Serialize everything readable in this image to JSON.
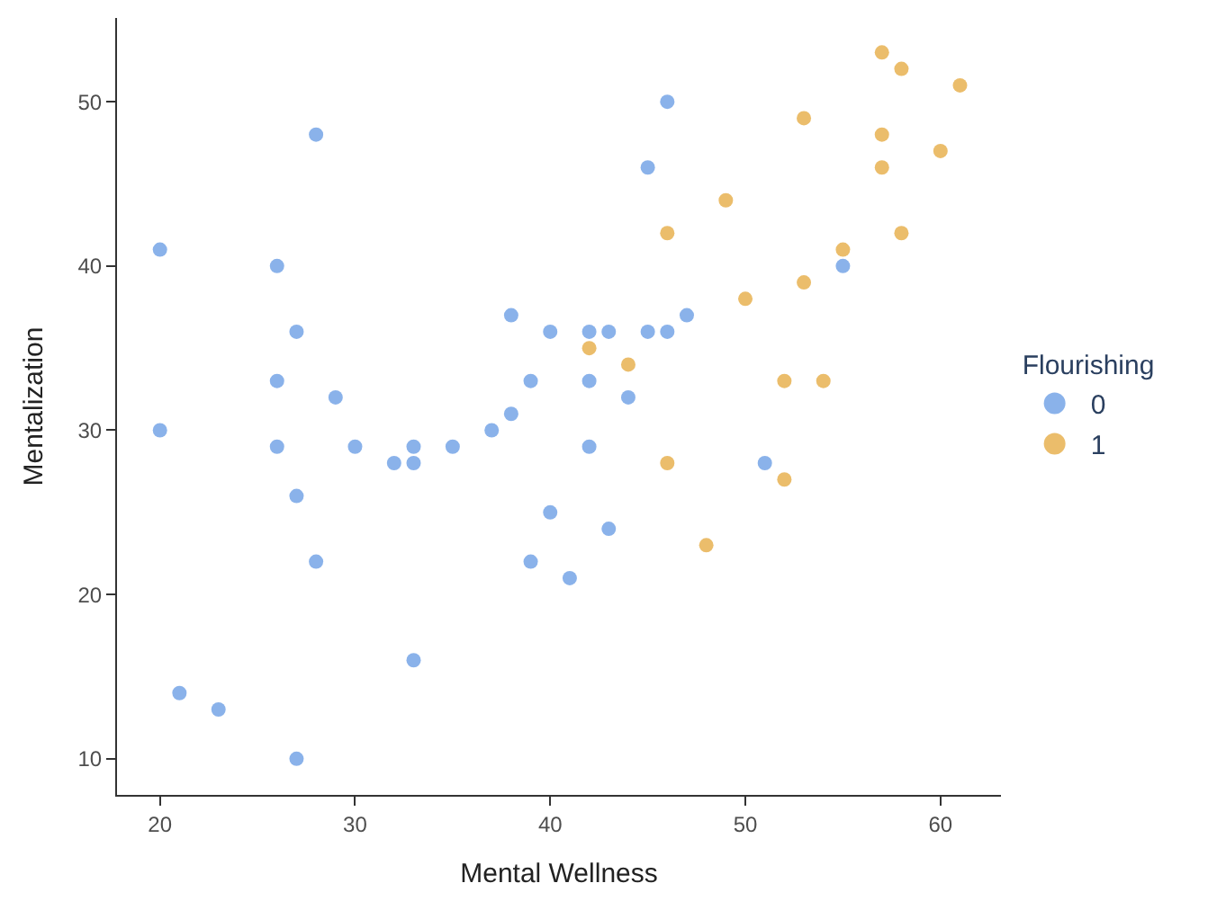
{
  "chart_data": {
    "type": "scatter",
    "xlabel": "Mental Wellness",
    "ylabel": "Mentalization",
    "legend_title": "Flourishing",
    "legend": "right",
    "marker": "circle",
    "xlim": [
      17.8,
      63.1
    ],
    "xticks": [
      20,
      30,
      40,
      50,
      60
    ],
    "ylim": [
      7.8,
      55.1
    ],
    "yticks": [
      10,
      20,
      30,
      40,
      50
    ],
    "series": [
      {
        "name": "0",
        "color": "#8ab2ea",
        "x": [
          20,
          20,
          21,
          23,
          26,
          26,
          26,
          27,
          27,
          27,
          28,
          28,
          29,
          30,
          32,
          33,
          33,
          33,
          35,
          37,
          38,
          38,
          39,
          39,
          40,
          40,
          41,
          42,
          42,
          42,
          43,
          43,
          44,
          45,
          45,
          46,
          46,
          47,
          51,
          55
        ],
        "values": [
          41,
          30,
          14,
          13,
          40,
          33,
          29,
          36,
          26,
          10,
          48,
          22,
          32,
          29,
          28,
          29,
          28,
          16,
          29,
          30,
          37,
          31,
          33,
          22,
          36,
          25,
          21,
          36,
          33,
          29,
          36,
          24,
          32,
          46,
          36,
          50,
          36,
          37,
          28,
          40
        ]
      },
      {
        "name": "1",
        "color": "#ebbd6b",
        "x": [
          42,
          44,
          46,
          46,
          48,
          49,
          50,
          52,
          52,
          53,
          53,
          54,
          55,
          57,
          57,
          57,
          58,
          58,
          60,
          61
        ],
        "values": [
          35,
          34,
          42,
          28,
          23,
          44,
          38,
          33,
          27,
          49,
          39,
          33,
          41,
          53,
          48,
          46,
          52,
          42,
          47,
          51
        ]
      }
    ]
  }
}
